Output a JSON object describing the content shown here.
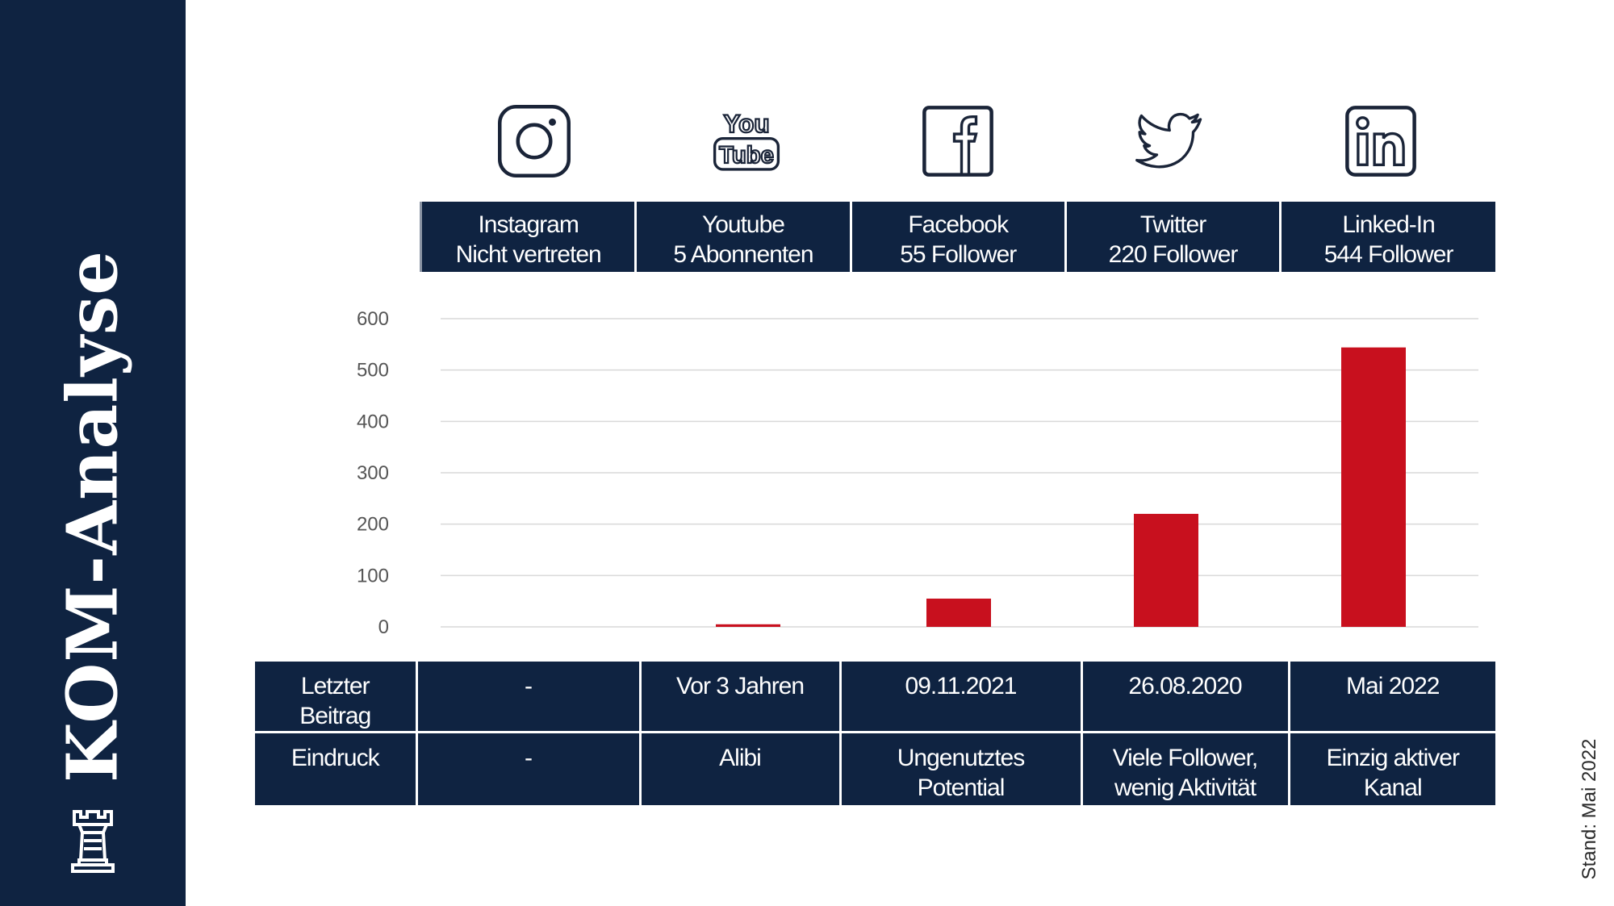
{
  "sidebar": {
    "title": "KOM-Analyse",
    "background": "#0f2341",
    "logo_icon": "chess-rook-icon"
  },
  "platforms": [
    {
      "name": "Instagram",
      "stat": "Nicht vertreten",
      "icon": "instagram-icon"
    },
    {
      "name": "Youtube",
      "stat": "5 Abonnenten",
      "icon": "youtube-icon"
    },
    {
      "name": "Facebook",
      "stat": "55 Follower",
      "icon": "facebook-icon"
    },
    {
      "name": "Twitter",
      "stat": "220 Follower",
      "icon": "twitter-icon"
    },
    {
      "name": "Linked-In",
      "stat": "544 Follower",
      "icon": "linkedin-icon"
    }
  ],
  "chart_data": {
    "type": "bar",
    "categories": [
      "Instagram",
      "Youtube",
      "Facebook",
      "Twitter",
      "Linked-In"
    ],
    "values": [
      0,
      5,
      55,
      220,
      544
    ],
    "ylim": [
      0,
      600
    ],
    "yticks": [
      0,
      100,
      200,
      300,
      400,
      500,
      600
    ],
    "grid": true,
    "bar_color": "#c8101e"
  },
  "table": {
    "rows": [
      {
        "label": "Letzter Beitrag",
        "cells": [
          "-",
          "Vor 3 Jahren",
          "09.11.2021",
          "26.08.2020",
          "Mai 2022"
        ]
      },
      {
        "label": "Eindruck",
        "cells": [
          "-",
          "Alibi",
          "Ungenutztes Potential",
          "Viele Follower, wenig Aktivität",
          "Einzig aktiver Kanal"
        ]
      }
    ]
  },
  "footer": {
    "stand": "Stand: Mai 2022"
  }
}
